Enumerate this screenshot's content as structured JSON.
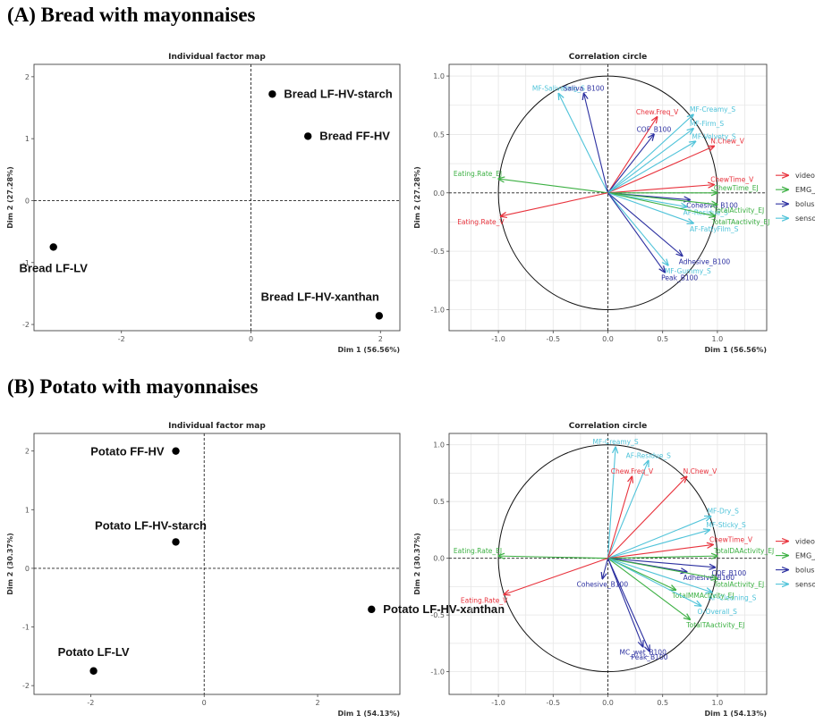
{
  "headings": {
    "a": "(A) Bread with mayonnaises",
    "b": "(B) Potato with mayonnaises"
  },
  "colors": {
    "videos": "#e8323c",
    "EMG_JT": "#3cb043",
    "bolus": "#2b2fa0",
    "sensory": "#4fc3d9"
  },
  "chart_data": [
    {
      "type": "scatter",
      "title": "Individual factor map",
      "xlabel": "Dim 1 (56.56%)",
      "ylabel": "Dim 2 (27.28%)",
      "xlim": [
        -3.35,
        2.3
      ],
      "ylim": [
        -2.1,
        2.2
      ],
      "xticks": [
        -2,
        0,
        2
      ],
      "yticks": [
        -2,
        -1,
        0,
        1,
        2
      ],
      "points": [
        {
          "label": "Bread LF-HV-starch",
          "x": 0.33,
          "y": 1.72
        },
        {
          "label": "Bread FF-HV",
          "x": 0.88,
          "y": 1.04
        },
        {
          "label": "Bread LF-LV",
          "x": -3.05,
          "y": -0.75
        },
        {
          "label": "Bread LF-HV-xanthan",
          "x": 1.98,
          "y": -1.86
        }
      ]
    },
    {
      "type": "scatter",
      "title": "Correlation circle",
      "xlabel": "Dim 1 (56.56%)",
      "ylabel": "Dim 2 (27.28%)",
      "xlim": [
        -1.45,
        1.45
      ],
      "ylim": [
        -1.18,
        1.1
      ],
      "xticks": [
        -1.0,
        -0.5,
        0.0,
        0.5,
        1.0
      ],
      "yticks": [
        -1.0,
        -0.5,
        0.0,
        0.5,
        1.0
      ],
      "legend": [
        "videos",
        "EMG_JT",
        "bolus",
        "sensory"
      ],
      "vectors": [
        {
          "label": "MF-Salivating_S",
          "x": -0.45,
          "y": 0.85,
          "group": "sensory"
        },
        {
          "label": "Saliva_B100",
          "x": -0.22,
          "y": 0.85,
          "group": "bolus"
        },
        {
          "label": "Chew.Freq_V",
          "x": 0.45,
          "y": 0.65,
          "group": "videos"
        },
        {
          "label": "COF_B100",
          "x": 0.42,
          "y": 0.5,
          "group": "bolus"
        },
        {
          "label": "MF-Creamy_S",
          "x": 0.78,
          "y": 0.67,
          "group": "sensory"
        },
        {
          "label": "MF-Firm_S",
          "x": 0.78,
          "y": 0.55,
          "group": "sensory"
        },
        {
          "label": "N.Chew_V",
          "x": 0.97,
          "y": 0.4,
          "group": "videos"
        },
        {
          "label": "MF-Velvety_S",
          "x": 0.8,
          "y": 0.44,
          "group": "sensory"
        },
        {
          "label": "ChewTime_V",
          "x": 0.97,
          "y": 0.07,
          "group": "videos"
        },
        {
          "label": "ChewTime_EJ",
          "x": 1.0,
          "y": 0.0,
          "group": "EMG_JT"
        },
        {
          "label": "Cohesive_B100",
          "x": 0.75,
          "y": -0.06,
          "group": "bolus"
        },
        {
          "label": "AF-Residue_S",
          "x": 0.72,
          "y": -0.12,
          "group": "sensory"
        },
        {
          "label": "TotalActivity_EJ",
          "x": 1.0,
          "y": -0.1,
          "group": "EMG_JT"
        },
        {
          "label": "TotalTAactivity_EJ",
          "x": 0.98,
          "y": -0.2,
          "group": "EMG_JT"
        },
        {
          "label": "AF-FattyFilm_S",
          "x": 0.78,
          "y": -0.26,
          "group": "sensory"
        },
        {
          "label": "Adhesive_B100",
          "x": 0.68,
          "y": -0.54,
          "group": "bolus"
        },
        {
          "label": "MF-Gummy_S",
          "x": 0.55,
          "y": -0.62,
          "group": "sensory"
        },
        {
          "label": "Peak_B100",
          "x": 0.52,
          "y": -0.68,
          "group": "bolus"
        },
        {
          "label": "Eating.Rate_EJ",
          "x": -1.0,
          "y": 0.12,
          "group": "EMG_JT"
        },
        {
          "label": "Eating.Rate_V",
          "x": -0.98,
          "y": -0.2,
          "group": "videos"
        }
      ]
    },
    {
      "type": "scatter",
      "title": "Individual factor map",
      "xlabel": "Dim 1 (54.13%)",
      "ylabel": "Dim 2 (30.37%)",
      "xlim": [
        -3.0,
        3.45
      ],
      "ylim": [
        -2.15,
        2.3
      ],
      "xticks": [
        -2,
        0,
        2
      ],
      "yticks": [
        -2,
        -1,
        0,
        1,
        2
      ],
      "points": [
        {
          "label": "Potato FF-HV",
          "x": -0.5,
          "y": 2.0
        },
        {
          "label": "Potato LF-HV-starch",
          "x": -0.5,
          "y": 0.45
        },
        {
          "label": "Potato LF-HV-xanthan",
          "x": 2.95,
          "y": -0.7
        },
        {
          "label": "Potato LF-LV",
          "x": -1.95,
          "y": -1.75
        }
      ]
    },
    {
      "type": "scatter",
      "title": "Correlation circle",
      "xlabel": "Dim 1 (54.13%)",
      "ylabel": "Dim 2 (30.37%)",
      "xlim": [
        -1.45,
        1.45
      ],
      "ylim": [
        -1.2,
        1.1
      ],
      "xticks": [
        -1.0,
        -0.5,
        0.0,
        0.5,
        1.0
      ],
      "yticks": [
        -1.0,
        -0.5,
        0.0,
        0.5,
        1.0
      ],
      "legend": [
        "videos",
        "EMG_JT",
        "bolus",
        "sensory"
      ],
      "vectors": [
        {
          "label": "MF-Creamy_S",
          "x": 0.07,
          "y": 0.98,
          "group": "sensory"
        },
        {
          "label": "AF-Residue_S",
          "x": 0.37,
          "y": 0.86,
          "group": "sensory"
        },
        {
          "label": "Chew.Freq_V",
          "x": 0.22,
          "y": 0.72,
          "group": "videos"
        },
        {
          "label": "N.Chew_V",
          "x": 0.72,
          "y": 0.72,
          "group": "videos"
        },
        {
          "label": "MF-Dry_S",
          "x": 0.94,
          "y": 0.37,
          "group": "sensory"
        },
        {
          "label": "MF-Sticky_S",
          "x": 0.93,
          "y": 0.25,
          "group": "sensory"
        },
        {
          "label": "ChewTime_V",
          "x": 0.96,
          "y": 0.12,
          "group": "videos"
        },
        {
          "label": "TotalDAActivity_EJ",
          "x": 1.0,
          "y": 0.02,
          "group": "EMG_JT"
        },
        {
          "label": "COF_B100",
          "x": 0.98,
          "y": -0.08,
          "group": "bolus"
        },
        {
          "label": "Adhesive_B100",
          "x": 0.72,
          "y": -0.12,
          "group": "bolus"
        },
        {
          "label": "TotalActivity_EJ",
          "x": 1.0,
          "y": -0.18,
          "group": "EMG_JT"
        },
        {
          "label": "AF-Cleaning_S",
          "x": 0.95,
          "y": -0.3,
          "group": "sensory"
        },
        {
          "label": "TotalMMActivity_EJ",
          "x": 0.62,
          "y": -0.28,
          "group": "EMG_JT"
        },
        {
          "label": "O-Overall_S",
          "x": 0.85,
          "y": -0.42,
          "group": "sensory"
        },
        {
          "label": "TotalTAactivity_EJ",
          "x": 0.75,
          "y": -0.54,
          "group": "EMG_JT"
        },
        {
          "label": "Cohesive_B100",
          "x": -0.05,
          "y": -0.18,
          "group": "bolus"
        },
        {
          "label": "MC_wet_B100",
          "x": 0.32,
          "y": -0.78,
          "group": "bolus"
        },
        {
          "label": "Peak_B100",
          "x": 0.38,
          "y": -0.82,
          "group": "bolus"
        },
        {
          "label": "Eating.Rate_EJ",
          "x": -1.0,
          "y": 0.02,
          "group": "EMG_JT"
        },
        {
          "label": "Eating.Rate_V",
          "x": -0.95,
          "y": -0.32,
          "group": "videos"
        }
      ]
    }
  ]
}
